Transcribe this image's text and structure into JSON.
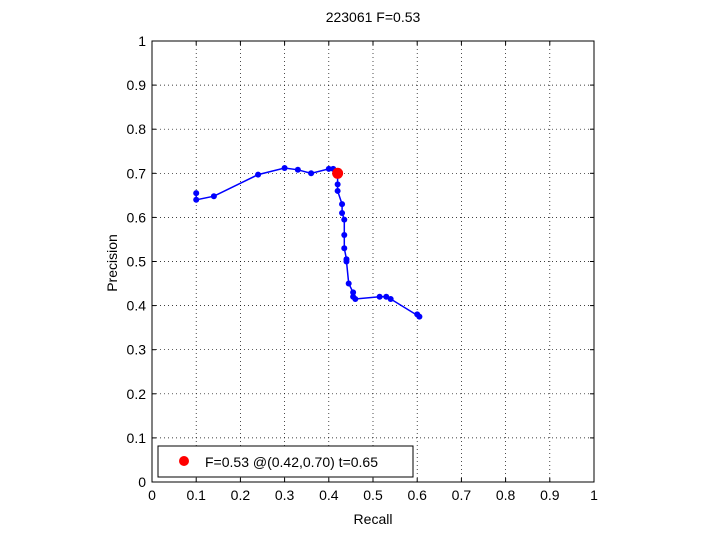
{
  "chart_data": {
    "type": "line",
    "title": "223061 F=0.53",
    "xlabel": "Recall",
    "ylabel": "Precision",
    "xlim": [
      0,
      1
    ],
    "ylim": [
      0,
      1
    ],
    "xticks": [
      "0",
      "0.1",
      "0.2",
      "0.3",
      "0.4",
      "0.5",
      "0.6",
      "0.7",
      "0.8",
      "0.9",
      "1"
    ],
    "yticks": [
      "0",
      "0.1",
      "0.2",
      "0.3",
      "0.4",
      "0.5",
      "0.6",
      "0.7",
      "0.8",
      "0.9",
      "1"
    ],
    "grid": true,
    "legend_placement": "bottom-left",
    "colors": {
      "curve": "#0000ff",
      "best_point": "#ff0000"
    },
    "series": [
      {
        "x": [
          0.6,
          0.605,
          0.54,
          0.53,
          0.515,
          0.46,
          0.455,
          0.455,
          0.445,
          0.44,
          0.44,
          0.435,
          0.435,
          0.435,
          0.43,
          0.43,
          0.42,
          0.42,
          0.42,
          0.41,
          0.4,
          0.36,
          0.33,
          0.3,
          0.24,
          0.14,
          0.1,
          0.1
        ],
        "y": [
          0.38,
          0.375,
          0.415,
          0.42,
          0.42,
          0.415,
          0.42,
          0.43,
          0.45,
          0.5,
          0.505,
          0.53,
          0.56,
          0.595,
          0.61,
          0.63,
          0.66,
          0.675,
          0.7,
          0.71,
          0.71,
          0.7,
          0.708,
          0.712,
          0.697,
          0.648,
          0.64,
          0.655
        ]
      }
    ],
    "best_point": {
      "x": 0.42,
      "y": 0.7
    },
    "legend_text": "F=0.53 @(0.42,0.70) t=0.65"
  }
}
